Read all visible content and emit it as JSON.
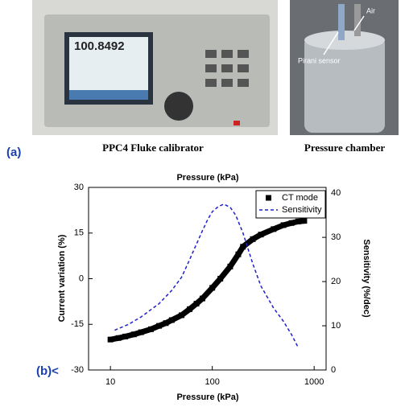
{
  "panel_a": {
    "label": "(a)",
    "photos": [
      {
        "caption": "PPC4 Fluke calibrator",
        "screen_text": "100.8492"
      },
      {
        "caption": "Pressure chamber",
        "annotations": [
          "Air",
          "Pirani sensor"
        ]
      }
    ]
  },
  "panel_b_label": "(b)<",
  "chart_data": {
    "type": "line",
    "title": "Pressure (kPa)",
    "x_label": "Pressure (kPa)",
    "y_label": "Current variation (%)",
    "y2_label": "Sensitivity (%/dec)",
    "xscale": "log",
    "xlim": [
      6.1,
      1310
    ],
    "xticks": [
      10,
      100,
      1000
    ],
    "ylim": [
      -30,
      30
    ],
    "yticks": [
      -30,
      -15,
      0,
      15,
      30
    ],
    "y2lim": [
      0,
      41.3
    ],
    "y2ticks": [
      0,
      10,
      20,
      30,
      40
    ],
    "legend": "upper right",
    "series": [
      {
        "name": "CT mode",
        "color": "#000000",
        "marker": "square",
        "x": [
          10,
          12,
          14,
          17,
          20,
          25,
          30,
          35,
          40,
          50,
          60,
          70,
          80,
          100,
          120,
          150,
          180,
          200,
          250,
          300,
          400,
          500,
          600,
          700,
          800
        ],
        "values": [
          -20,
          -19.5,
          -19,
          -18.3,
          -17.6,
          -16.6,
          -15.5,
          -14.6,
          -13.6,
          -12,
          -10,
          -8.2,
          -6.5,
          -3,
          0,
          4,
          8,
          10.5,
          13,
          14.5,
          16.3,
          17.6,
          18.3,
          18.8,
          19
        ]
      },
      {
        "name": "Sensitivity",
        "color": "#1f1fcc",
        "dash": true,
        "axis": "y2",
        "x": [
          11,
          15,
          20,
          30,
          40,
          50,
          60,
          70,
          80,
          90,
          100,
          115,
          130,
          150,
          170,
          200,
          250,
          300,
          400,
          500,
          600,
          700
        ],
        "values": [
          9,
          10.3,
          12,
          15,
          18,
          21,
          25,
          28.5,
          31.5,
          34,
          35.8,
          37,
          37.5,
          36.8,
          35,
          31,
          24,
          19,
          14,
          11,
          8,
          5
        ]
      }
    ]
  }
}
